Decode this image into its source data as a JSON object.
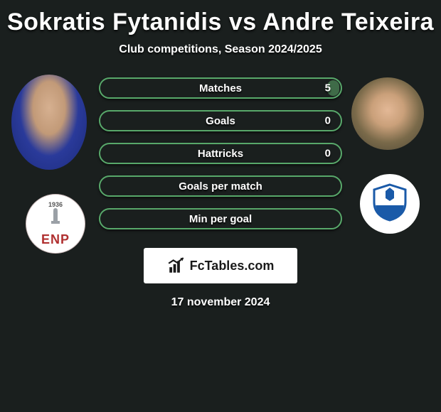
{
  "header": {
    "player1": "Sokratis Fytanidis",
    "vs": "vs",
    "player2": "Andre Teixeira",
    "title_color": "#ffffff",
    "title_fontsize": 34
  },
  "subtitle": {
    "text": "Club competitions, Season 2024/2025",
    "fontsize": 16
  },
  "bars": {
    "border_color": "#58a86a",
    "fill_color": "#3f6b48",
    "items": [
      {
        "label": "Matches",
        "value_right": "5",
        "fill_right_pct": 5
      },
      {
        "label": "Goals",
        "value_right": "0",
        "fill_right_pct": 0
      },
      {
        "label": "Hattricks",
        "value_right": "0",
        "fill_right_pct": 0
      },
      {
        "label": "Goals per match",
        "value_right": "",
        "fill_right_pct": 0
      },
      {
        "label": "Min per goal",
        "value_right": "",
        "fill_right_pct": 0
      }
    ]
  },
  "avatars": {
    "left_player_bg": "radial-gradient(ellipse at 50% 35%, #d6b090 0%, #c29a78 30%, #2a3a9a 55%, #1b2a7a 100%)",
    "right_player_bg": "radial-gradient(circle at 50% 45%, #e3b896 0%, #caa07a 30%, #7a6a4a 60%, #4a4434 100%)"
  },
  "clubs": {
    "left": {
      "year": "1936",
      "letters": "ENP",
      "text_color": "#b03030"
    },
    "right": {
      "shield_stroke": "#1a5aa8",
      "shield_fill": "#ffffff",
      "accent": "#1a5aa8"
    }
  },
  "branding": {
    "name": "FcTables.com",
    "icon_color": "#1a1a1a"
  },
  "date": {
    "text": "17 november 2024"
  },
  "theme": {
    "page_bg": "#1a1f1e",
    "text_color": "#ffffff"
  }
}
